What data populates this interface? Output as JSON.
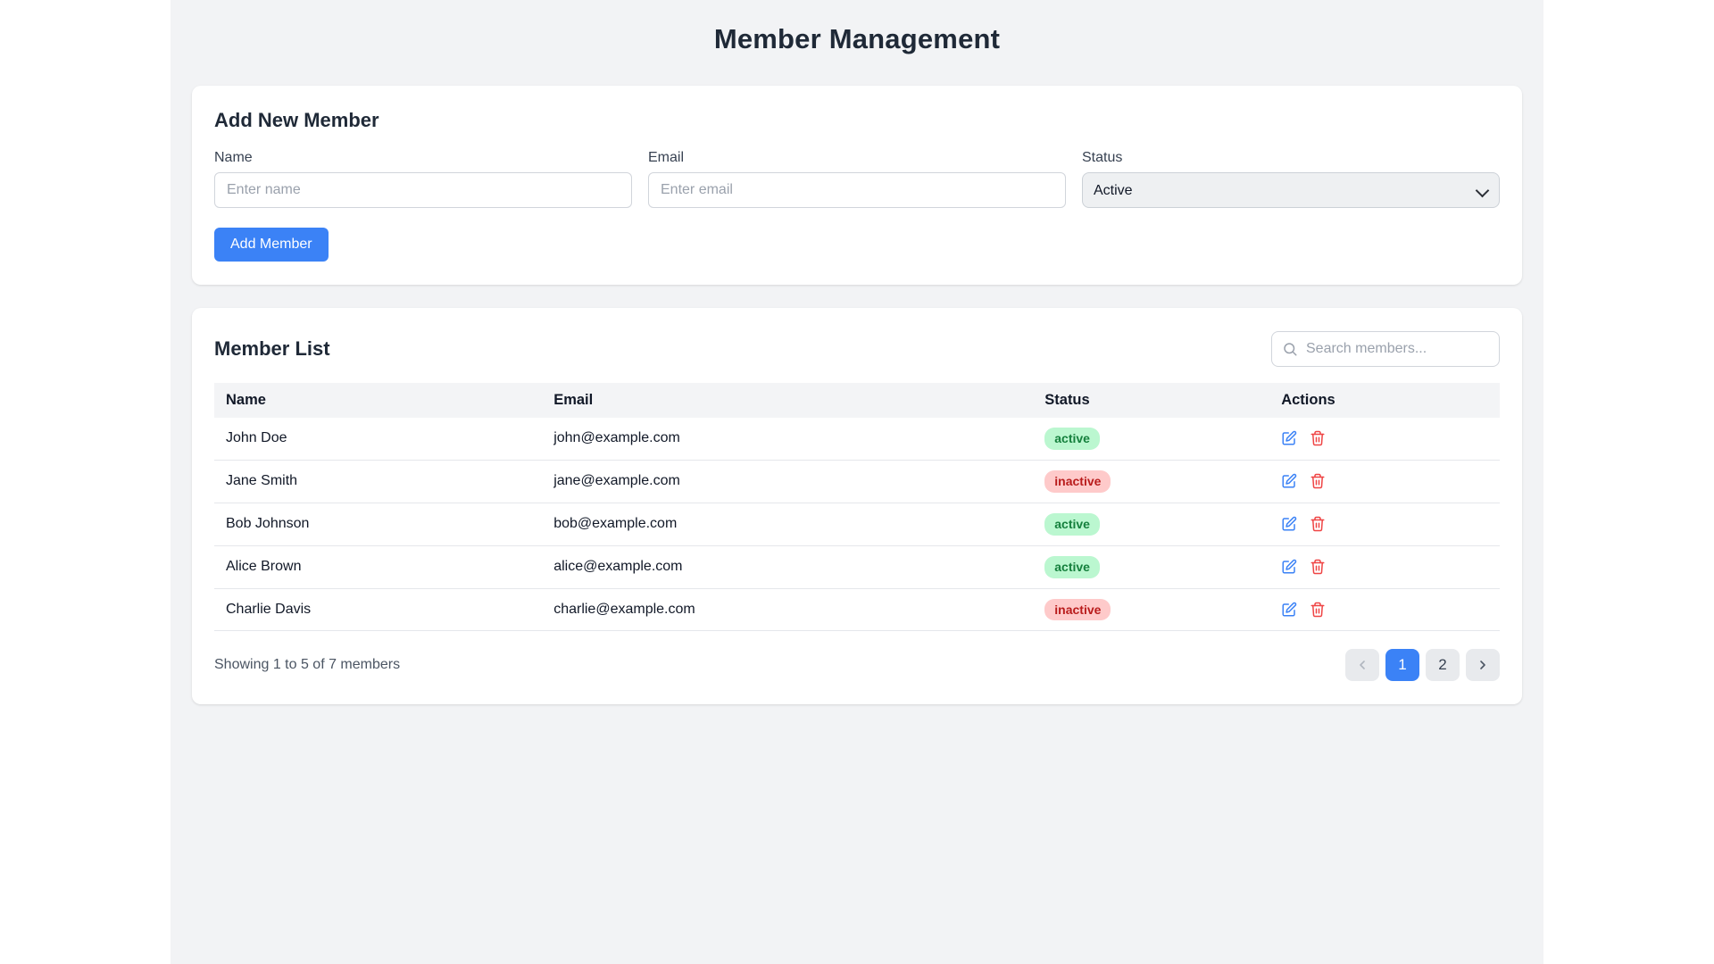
{
  "page": {
    "title": "Member Management"
  },
  "add_member": {
    "heading": "Add New Member",
    "fields": {
      "name": {
        "label": "Name",
        "placeholder": "Enter name",
        "value": ""
      },
      "email": {
        "label": "Email",
        "placeholder": "Enter email",
        "value": ""
      },
      "status": {
        "label": "Status",
        "selected": "Active"
      }
    },
    "submit_label": "Add Member"
  },
  "member_list": {
    "heading": "Member List",
    "search": {
      "placeholder": "Search members...",
      "value": "",
      "icon": "search-icon"
    },
    "table": {
      "columns": {
        "name": "Name",
        "email": "Email",
        "status": "Status",
        "actions": "Actions"
      },
      "rows": [
        {
          "name": "John Doe",
          "email": "john@example.com",
          "status": "active"
        },
        {
          "name": "Jane Smith",
          "email": "jane@example.com",
          "status": "inactive"
        },
        {
          "name": "Bob Johnson",
          "email": "bob@example.com",
          "status": "active"
        },
        {
          "name": "Alice Brown",
          "email": "alice@example.com",
          "status": "active"
        },
        {
          "name": "Charlie Davis",
          "email": "charlie@example.com",
          "status": "inactive"
        }
      ],
      "action_icons": {
        "edit": "edit-icon",
        "delete": "trash-icon"
      }
    },
    "pagination": {
      "summary": "Showing 1 to 5 of 7 members",
      "pages": [
        {
          "label": "1",
          "active": true
        },
        {
          "label": "2",
          "active": false
        }
      ]
    }
  },
  "colors": {
    "accent_blue": "#3b82f6",
    "active_badge_bg": "#bbf7d0",
    "active_badge_text": "#15803d",
    "inactive_badge_bg": "#fecaca",
    "inactive_badge_text": "#b91c1c",
    "page_bg": "#f2f3f5",
    "card_bg": "#ffffff"
  }
}
